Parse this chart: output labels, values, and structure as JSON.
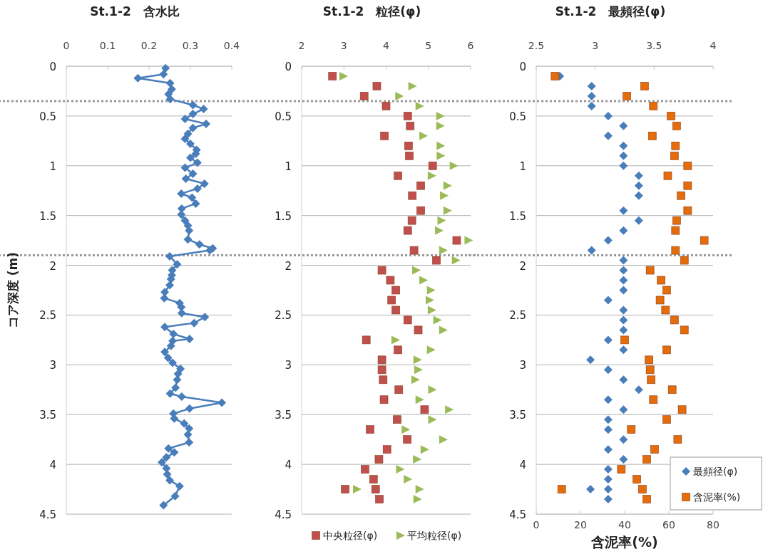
{
  "chart_data": [
    {
      "type": "line",
      "title": "St.1-2　含水比",
      "ylabel": "コア深度 (m)",
      "orientation": "horizontal",
      "xlim": [
        0,
        0.4
      ],
      "xticks": [
        0,
        0.1,
        0.2,
        0.3,
        0.4
      ],
      "ylim": [
        4.5,
        0
      ],
      "yticks": [
        0,
        0.5,
        1,
        1.5,
        2,
        2.5,
        3,
        3.5,
        4,
        4.5
      ],
      "grid": "y",
      "marker": "diamond",
      "legend": false,
      "series": [
        {
          "color": "#4a7ebb",
          "x": [
            0.02,
            0.08,
            0.12,
            0.17,
            0.23,
            0.28,
            0.33,
            0.39,
            0.43,
            0.48,
            0.53,
            0.58,
            0.62,
            0.68,
            0.73,
            0.78,
            0.84,
            0.88,
            0.92,
            0.97,
            1.02,
            1.08,
            1.13,
            1.18,
            1.23,
            1.28,
            1.32,
            1.38,
            1.43,
            1.49,
            1.55,
            1.6,
            1.65,
            1.74,
            1.79,
            1.83,
            1.85,
            1.91,
            1.99,
            2.05,
            2.1,
            2.14,
            2.2,
            2.27,
            2.33,
            2.38,
            2.42,
            2.48,
            2.52,
            2.58,
            2.62,
            2.69,
            2.74,
            2.76,
            2.81,
            2.87,
            2.93,
            2.98,
            3.04,
            3.09,
            3.15,
            3.23,
            3.29,
            3.32,
            3.38,
            3.44,
            3.49,
            3.54,
            3.59,
            3.64,
            3.7,
            3.78,
            3.84,
            3.88,
            3.93,
            3.98,
            4.04,
            4.1,
            4.16,
            4.22,
            4.32,
            4.41
          ],
          "values": [
            0.24,
            0.235,
            0.173,
            0.251,
            0.255,
            0.247,
            0.251,
            0.306,
            0.332,
            0.306,
            0.287,
            0.338,
            0.306,
            0.294,
            0.287,
            0.3,
            0.315,
            0.313,
            0.3,
            0.317,
            0.287,
            0.306,
            0.289,
            0.334,
            0.317,
            0.278,
            0.304,
            0.313,
            0.279,
            0.278,
            0.287,
            0.294,
            0.297,
            0.294,
            0.322,
            0.354,
            0.347,
            0.25,
            0.268,
            0.256,
            0.255,
            0.253,
            0.25,
            0.238,
            0.237,
            0.274,
            0.278,
            0.279,
            0.335,
            0.309,
            0.238,
            0.259,
            0.298,
            0.257,
            0.253,
            0.238,
            0.246,
            0.257,
            0.276,
            0.27,
            0.268,
            0.264,
            0.251,
            0.279,
            0.376,
            0.298,
            0.259,
            0.261,
            0.285,
            0.297,
            0.294,
            0.297,
            0.247,
            0.261,
            0.242,
            0.231,
            0.242,
            0.244,
            0.25,
            0.274,
            0.263,
            0.235
          ]
        }
      ],
      "ref_lines": [
        {
          "axis": "y",
          "value": 0.35,
          "color": "#999999",
          "line_style": "dotted"
        },
        {
          "axis": "y",
          "value": 1.9,
          "color": "#999999",
          "line_style": "dotted"
        }
      ]
    },
    {
      "type": "scatter",
      "title": "St.1-2　粒径(φ)",
      "orientation": "horizontal",
      "xlim": [
        2,
        6
      ],
      "xticks": [
        2,
        3,
        4,
        5,
        6
      ],
      "ylim": [
        4.5,
        0
      ],
      "yticks": [
        0,
        0.5,
        1,
        1.5,
        2,
        2.5,
        3,
        3.5,
        4,
        4.5
      ],
      "grid": "y",
      "legend": "bottom",
      "series": [
        {
          "name": "中央粒径(φ)",
          "color": "#c0504d",
          "marker": "square",
          "x": [
            0.1,
            0.2,
            0.3,
            0.4,
            0.5,
            0.6,
            0.7,
            0.8,
            0.9,
            1.0,
            1.1,
            1.2,
            1.3,
            1.45,
            1.55,
            1.65,
            1.75,
            1.85,
            1.95,
            2.05,
            2.15,
            2.25,
            2.35,
            2.45,
            2.55,
            2.65,
            2.75,
            2.85,
            2.95,
            3.05,
            3.15,
            3.25,
            3.35,
            3.45,
            3.55,
            3.65,
            3.75,
            3.85,
            3.95,
            4.05,
            4.15,
            4.25,
            4.25,
            4.35
          ],
          "values": [
            2.73,
            3.78,
            3.48,
            4.0,
            4.51,
            4.57,
            3.96,
            4.53,
            4.55,
            5.1,
            4.28,
            4.82,
            4.62,
            4.82,
            4.61,
            4.51,
            5.67,
            4.66,
            5.19,
            3.9,
            4.1,
            4.23,
            4.13,
            4.23,
            4.51,
            4.76,
            3.53,
            4.28,
            3.9,
            3.9,
            3.93,
            4.3,
            3.95,
            4.91,
            4.26,
            3.62,
            4.5,
            4.02,
            3.83,
            3.5,
            3.7,
            3.75,
            3.03,
            3.84
          ]
        },
        {
          "name": "平均粒径(φ)",
          "color": "#9bbb59",
          "marker": "triangle",
          "x": [
            0.1,
            0.2,
            0.3,
            0.4,
            0.5,
            0.6,
            0.7,
            0.8,
            0.9,
            1.0,
            1.1,
            1.2,
            1.3,
            1.45,
            1.55,
            1.65,
            1.75,
            1.85,
            1.95,
            2.05,
            2.15,
            2.25,
            2.35,
            2.45,
            2.55,
            2.65,
            2.75,
            2.85,
            2.95,
            3.05,
            3.15,
            3.25,
            3.35,
            3.45,
            3.55,
            3.65,
            3.75,
            3.85,
            3.95,
            4.05,
            4.15,
            4.25,
            4.25,
            4.35
          ],
          "values": [
            2.98,
            4.61,
            4.3,
            4.78,
            5.27,
            5.27,
            4.87,
            5.28,
            5.28,
            5.59,
            5.07,
            5.44,
            5.36,
            5.44,
            5.3,
            5.24,
            5.94,
            5.34,
            5.64,
            4.7,
            4.87,
            5.05,
            5.02,
            5.07,
            5.2,
            5.34,
            4.21,
            5.05,
            4.73,
            4.75,
            4.68,
            5.08,
            4.78,
            5.48,
            5.08,
            4.45,
            5.34,
            4.9,
            4.72,
            4.32,
            4.5,
            4.78,
            3.3,
            4.73
          ]
        }
      ],
      "ref_lines": [
        {
          "axis": "y",
          "value": 0.35,
          "color": "#999999",
          "line_style": "dotted"
        },
        {
          "axis": "y",
          "value": 1.9,
          "color": "#999999",
          "line_style": "dotted"
        }
      ]
    },
    {
      "type": "scatter",
      "title": "St.1-2　最頻径(φ)",
      "xlabel": "含泥率(%)",
      "orientation": "horizontal",
      "xlim": [
        0,
        80
      ],
      "xticks": [
        0,
        20,
        40,
        60,
        80
      ],
      "x2lim": [
        2.5,
        4
      ],
      "x2ticks": [
        2.5,
        3,
        3.5,
        4
      ],
      "ylim": [
        4.5,
        0
      ],
      "yticks": [
        0,
        0.5,
        1,
        1.5,
        2,
        2.5,
        3,
        3.5,
        4,
        4.5
      ],
      "grid": "y",
      "legend": "bottom right",
      "series": [
        {
          "name": "最頻径(φ)",
          "color": "#4a7ebb",
          "marker": "diamond",
          "axis": "x2",
          "x": [
            0.1,
            0.2,
            0.3,
            0.4,
            0.5,
            0.6,
            0.7,
            0.8,
            0.9,
            1.0,
            1.1,
            1.2,
            1.3,
            1.45,
            1.55,
            1.65,
            1.75,
            1.85,
            1.95,
            2.05,
            2.15,
            2.25,
            2.35,
            2.45,
            2.55,
            2.65,
            2.75,
            2.85,
            2.95,
            3.05,
            3.15,
            3.25,
            3.35,
            3.45,
            3.55,
            3.65,
            3.75,
            3.85,
            3.95,
            4.05,
            4.15,
            4.25,
            4.25,
            4.35
          ],
          "values": [
            2.7,
            2.97,
            2.97,
            2.97,
            3.11,
            3.24,
            3.11,
            3.24,
            3.24,
            3.24,
            3.37,
            3.37,
            3.37,
            3.24,
            3.37,
            3.24,
            3.11,
            2.97,
            3.24,
            3.24,
            3.24,
            3.24,
            3.11,
            3.24,
            3.24,
            3.24,
            3.11,
            3.24,
            2.96,
            3.11,
            3.24,
            3.37,
            3.11,
            3.24,
            3.11,
            3.11,
            3.24,
            3.11,
            3.24,
            3.11,
            3.11,
            3.11,
            2.96,
            3.11
          ]
        },
        {
          "name": "含泥率(%)",
          "color": "#e46c0a",
          "marker": "square",
          "x": [
            0.1,
            0.2,
            0.3,
            0.4,
            0.5,
            0.6,
            0.7,
            0.8,
            0.9,
            1.0,
            1.1,
            1.2,
            1.3,
            1.45,
            1.55,
            1.65,
            1.75,
            1.85,
            1.95,
            2.05,
            2.15,
            2.25,
            2.35,
            2.45,
            2.55,
            2.65,
            2.75,
            2.85,
            2.95,
            3.05,
            3.15,
            3.25,
            3.35,
            3.45,
            3.55,
            3.65,
            3.75,
            3.85,
            3.95,
            4.05,
            4.15,
            4.25,
            4.25,
            4.35
          ],
          "values": [
            8.5,
            49,
            41,
            53,
            61,
            63.5,
            52.5,
            63,
            62.5,
            68.5,
            59.5,
            68.5,
            65.5,
            68.5,
            63.5,
            63,
            76,
            63,
            67,
            51.5,
            56.5,
            59,
            56,
            58.5,
            62.5,
            67,
            40,
            59,
            51,
            51.5,
            52,
            61.5,
            53,
            66,
            59,
            43,
            64,
            53.5,
            50,
            38.5,
            45.5,
            48,
            11.5,
            50
          ]
        }
      ],
      "ref_lines": [
        {
          "axis": "y",
          "value": 0.35,
          "color": "#999999",
          "line_style": "dotted"
        },
        {
          "axis": "y",
          "value": 1.9,
          "color": "#999999",
          "line_style": "dotted"
        }
      ]
    }
  ]
}
